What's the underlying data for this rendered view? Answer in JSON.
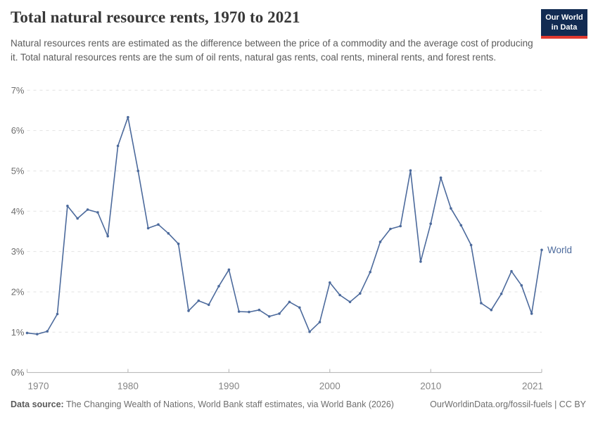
{
  "header": {
    "title": "Total natural resource rents, 1970 to 2021",
    "subtitle": "Natural resources rents are estimated as the difference between the price of a commodity and the average cost of producing it. Total natural resources rents are the sum of oil rents, natural gas rents, coal rents, mineral rents, and forest rents.",
    "logo": {
      "line1": "Our World",
      "line2": "in Data"
    }
  },
  "footer": {
    "datasource_label": "Data source:",
    "datasource_text": " The Changing Wealth of Nations, World Bank staff estimates, via World Bank (2026)",
    "url": "OurWorldinData.org/fossil-fuels",
    "separator": " | ",
    "license": "CC BY"
  },
  "colors": {
    "line": "#4c6a9c",
    "series_label": "#4c6a9c",
    "gridline": "#e2e2e2",
    "axis": "#b3b3b3",
    "ytick_label": "#6e6e6e",
    "xtick_label": "#858585",
    "logo_bg": "#122b52",
    "logo_accent": "#e0392f"
  },
  "chart_data": {
    "type": "line",
    "title": "Total natural resource rents, 1970 to 2021",
    "xlabel": "",
    "ylabel": "",
    "xlim": [
      1970,
      2021
    ],
    "ylim": [
      0,
      7
    ],
    "yticks": [
      0,
      1,
      2,
      3,
      4,
      5,
      6,
      7
    ],
    "ytick_suffix": "%",
    "xticks": [
      1970,
      1980,
      1990,
      2000,
      2010,
      2021
    ],
    "grid": "horizontal-dashed",
    "legend_position": "end-of-line-label",
    "series": [
      {
        "name": "World",
        "x": [
          1970,
          1971,
          1972,
          1973,
          1974,
          1975,
          1976,
          1977,
          1978,
          1979,
          1980,
          1981,
          1982,
          1983,
          1984,
          1985,
          1986,
          1987,
          1988,
          1989,
          1990,
          1991,
          1992,
          1993,
          1994,
          1995,
          1996,
          1997,
          1998,
          1999,
          2000,
          2001,
          2002,
          2003,
          2004,
          2005,
          2006,
          2007,
          2008,
          2009,
          2010,
          2011,
          2012,
          2013,
          2014,
          2015,
          2016,
          2017,
          2018,
          2019,
          2020,
          2021
        ],
        "values": [
          0.98,
          0.95,
          1.02,
          1.45,
          4.13,
          3.82,
          4.04,
          3.97,
          3.38,
          5.62,
          6.33,
          5.0,
          3.58,
          3.67,
          3.45,
          3.19,
          1.53,
          1.78,
          1.68,
          2.14,
          2.55,
          1.51,
          1.5,
          1.55,
          1.39,
          1.46,
          1.75,
          1.61,
          1.01,
          1.25,
          2.23,
          1.92,
          1.75,
          1.96,
          2.49,
          3.24,
          3.56,
          3.63,
          5.01,
          2.75,
          3.69,
          4.83,
          4.07,
          3.65,
          3.16,
          1.72,
          1.55,
          1.95,
          2.51,
          2.16,
          1.46,
          3.04
        ]
      }
    ]
  }
}
